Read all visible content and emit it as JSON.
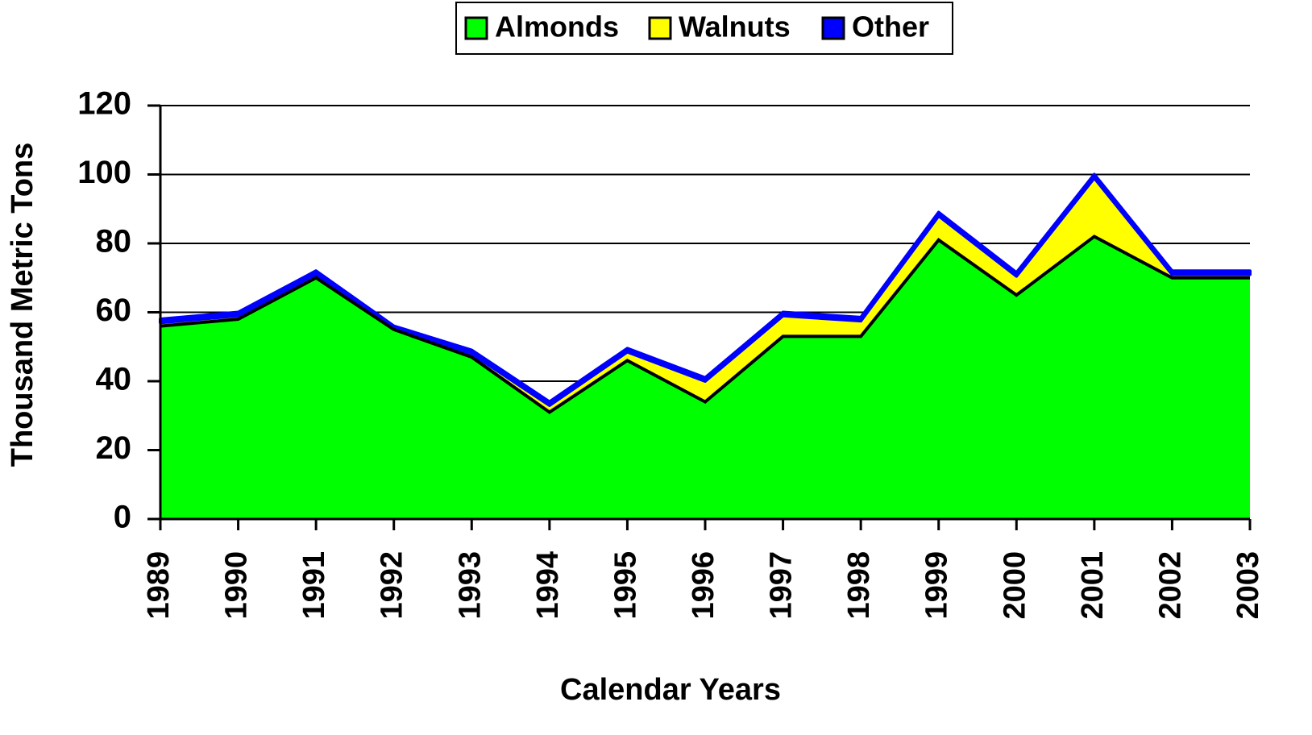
{
  "chart_data": {
    "type": "stacked_area",
    "categories": [
      "1989",
      "1990",
      "1991",
      "1992",
      "1993",
      "1994",
      "1995",
      "1996",
      "1997",
      "1998",
      "1999",
      "2000",
      "2001",
      "2002",
      "2003"
    ],
    "series": [
      {
        "name": "Almonds",
        "color": "#00ff00",
        "values": [
          56,
          58,
          70,
          55,
          47,
          31,
          46,
          34,
          53,
          53,
          81,
          65,
          82,
          70,
          70
        ]
      },
      {
        "name": "Walnuts",
        "color": "#ffff00",
        "values": [
          1,
          1,
          1,
          0.5,
          1,
          2,
          2.5,
          6,
          6,
          4.5,
          7,
          5.5,
          17,
          1,
          1
        ]
      },
      {
        "name": "Other",
        "color": "#0000ff",
        "values": [
          1,
          1,
          1,
          0.5,
          1,
          1,
          1,
          1,
          1,
          1,
          1,
          1,
          1,
          1,
          1
        ]
      }
    ],
    "xlabel": "Calendar Years",
    "ylabel": "Thousand Metric Tons",
    "ylim": [
      0,
      120
    ],
    "yticks": [
      0,
      20,
      40,
      60,
      80,
      100,
      120
    ],
    "grid": true,
    "legend": "top"
  }
}
